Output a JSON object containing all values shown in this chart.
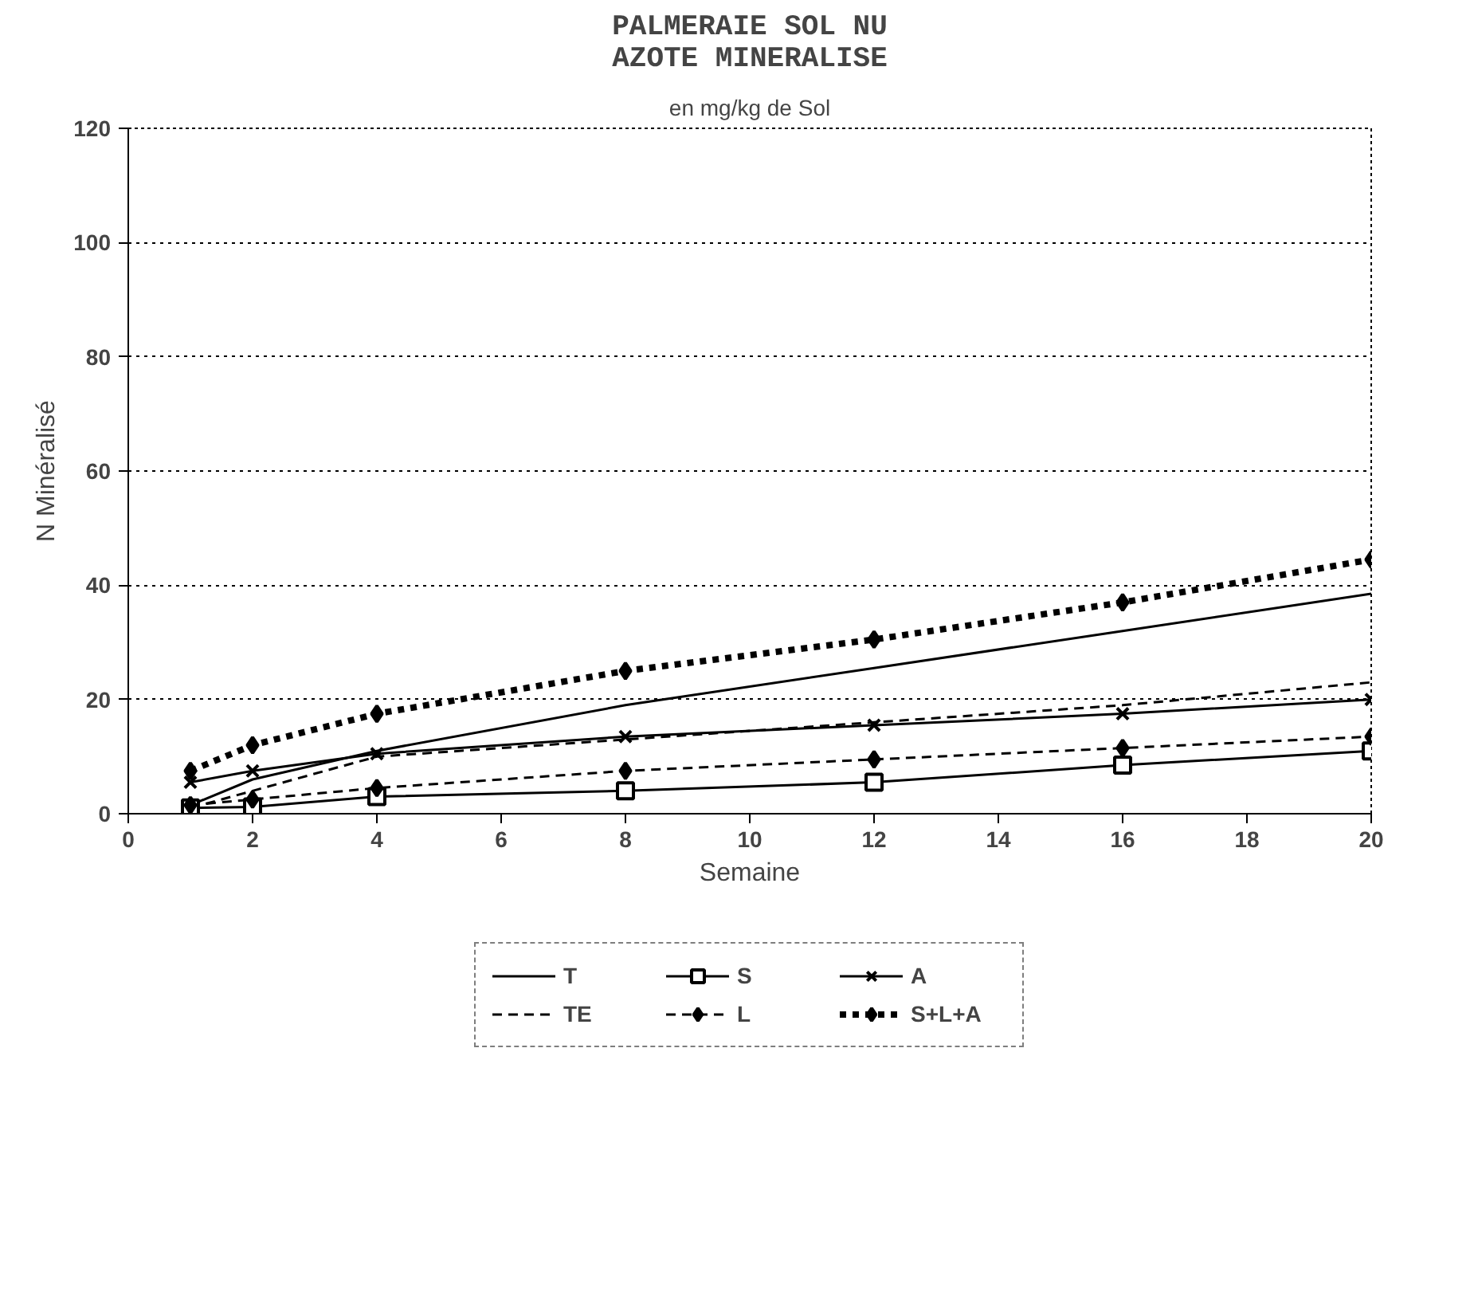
{
  "chart_data": {
    "type": "line",
    "title": "PALMERAIE SOL NU\nAZOTE MINERALISE",
    "subtitle": "en mg/kg de Sol",
    "xlabel": "Semaine",
    "ylabel": "N Minéralisé",
    "x": [
      1,
      2,
      4,
      8,
      12,
      16,
      20
    ],
    "series": [
      {
        "name": "T",
        "color": "#000000",
        "line_style": "solid",
        "marker": "none",
        "values": [
          1.5,
          6,
          11,
          19,
          25.5,
          32,
          38.5
        ]
      },
      {
        "name": "TE",
        "color": "#000000",
        "line_style": "dashed",
        "marker": "none",
        "values": [
          1,
          4,
          10,
          13,
          16,
          19,
          23
        ]
      },
      {
        "name": "S",
        "color": "#000000",
        "line_style": "solid",
        "marker": "square",
        "values": [
          1,
          1.2,
          3,
          4,
          5.5,
          8.5,
          11
        ]
      },
      {
        "name": "L",
        "color": "#000000",
        "line_style": "dashed",
        "marker": "diamond",
        "values": [
          1.5,
          2.5,
          4.5,
          7.5,
          9.5,
          11.5,
          13.5
        ]
      },
      {
        "name": "A",
        "color": "#000000",
        "line_style": "solid",
        "marker": "cross",
        "values": [
          5.5,
          7.5,
          10.5,
          13.5,
          15.5,
          17.5,
          20
        ]
      },
      {
        "name": "S+L+A",
        "color": "#000000",
        "line_style": "dotted",
        "marker": "diamond",
        "values": [
          7.5,
          12,
          17.5,
          25,
          30.5,
          37,
          44.5
        ]
      }
    ],
    "xlim": [
      0,
      20
    ],
    "xticks": [
      0,
      2,
      4,
      6,
      8,
      10,
      12,
      14,
      16,
      18,
      20
    ],
    "ylim": [
      0,
      120
    ],
    "yticks": [
      0,
      20,
      40,
      60,
      80,
      100,
      120
    ],
    "grid": "y",
    "legend": "bottom"
  }
}
